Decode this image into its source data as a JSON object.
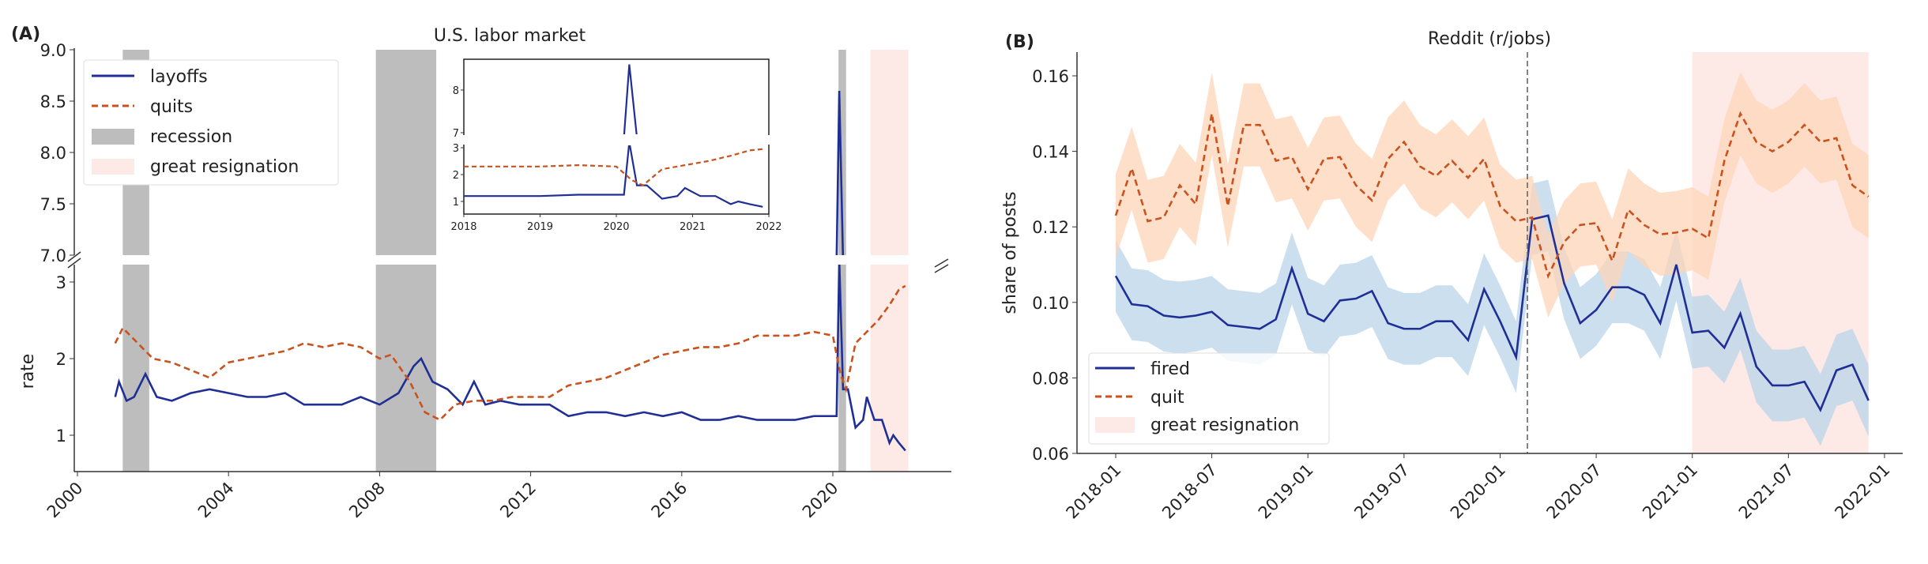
{
  "chart_data": [
    {
      "panel_label": "(A)",
      "type": "line",
      "title": "U.S. labor market",
      "ylabel": "rate",
      "xlabel": "",
      "xlim": [
        1999.9,
        2023.0
      ],
      "ylim_lower": [
        0.5,
        3.2
      ],
      "ylim_upper": [
        7.0,
        9.0
      ],
      "x_ticks": [
        "2000",
        "2004",
        "2008",
        "2012",
        "2016",
        "2020"
      ],
      "y_ticks_lower": [
        "1",
        "2",
        "3"
      ],
      "y_ticks_upper": [
        "7.0",
        "7.5",
        "8.0",
        "8.5",
        "9.0"
      ],
      "legend": {
        "position": "top-left",
        "entries": [
          "layoffs",
          "quits",
          "recession",
          "great resignation"
        ]
      },
      "colors": {
        "layoffs": "#1f2f96",
        "quits": "#c9521e",
        "recession": "#bdbdbd",
        "great_resignation": "#fde9e5"
      },
      "recessions": [
        [
          2001.2,
          2001.9
        ],
        [
          2007.9,
          2009.5
        ],
        [
          2020.15,
          2020.35
        ]
      ],
      "great_resignation": [
        2021.0,
        2022.0
      ],
      "series": [
        {
          "name": "layoffs",
          "style": "solid",
          "x": [
            2001.0,
            2001.1,
            2001.3,
            2001.5,
            2001.8,
            2002.1,
            2002.5,
            2003.0,
            2003.5,
            2004.0,
            2004.5,
            2005.0,
            2005.5,
            2006.0,
            2006.5,
            2007.0,
            2007.5,
            2008.0,
            2008.5,
            2008.9,
            2009.1,
            2009.4,
            2009.8,
            2010.2,
            2010.5,
            2010.8,
            2011.2,
            2011.7,
            2012.0,
            2012.5,
            2013.0,
            2013.5,
            2014.0,
            2014.5,
            2015.0,
            2015.5,
            2016.0,
            2016.5,
            2017.0,
            2017.5,
            2018.0,
            2018.5,
            2019.0,
            2019.5,
            2020.0,
            2020.1,
            2020.17,
            2020.27,
            2020.4,
            2020.6,
            2020.8,
            2020.9,
            2021.1,
            2021.3,
            2021.5,
            2021.6,
            2021.75,
            2021.92
          ],
          "y": [
            1.5,
            1.7,
            1.45,
            1.5,
            1.8,
            1.5,
            1.45,
            1.55,
            1.6,
            1.55,
            1.5,
            1.5,
            1.55,
            1.4,
            1.4,
            1.4,
            1.5,
            1.4,
            1.55,
            1.9,
            2.0,
            1.7,
            1.6,
            1.4,
            1.7,
            1.4,
            1.45,
            1.4,
            1.4,
            1.4,
            1.25,
            1.3,
            1.3,
            1.25,
            1.3,
            1.25,
            1.3,
            1.2,
            1.2,
            1.25,
            1.2,
            1.2,
            1.2,
            1.25,
            1.25,
            1.25,
            8.6,
            1.6,
            1.6,
            1.1,
            1.2,
            1.5,
            1.2,
            1.2,
            0.9,
            1.0,
            0.9,
            0.8
          ]
        },
        {
          "name": "quits",
          "style": "dashed",
          "x": [
            2001.0,
            2001.2,
            2001.6,
            2002.0,
            2002.5,
            2003.0,
            2003.5,
            2004.0,
            2004.5,
            2005.0,
            2005.5,
            2006.0,
            2006.5,
            2007.0,
            2007.5,
            2008.0,
            2008.3,
            2008.8,
            2009.2,
            2009.6,
            2010.0,
            2010.5,
            2011.0,
            2011.5,
            2012.0,
            2012.5,
            2013.0,
            2013.5,
            2014.0,
            2014.5,
            2015.0,
            2015.5,
            2016.0,
            2016.5,
            2017.0,
            2017.5,
            2018.0,
            2018.5,
            2019.0,
            2019.5,
            2020.0,
            2020.2,
            2020.35,
            2020.6,
            2020.9,
            2021.2,
            2021.5,
            2021.75,
            2021.92
          ],
          "y": [
            2.2,
            2.4,
            2.2,
            2.0,
            1.95,
            1.85,
            1.75,
            1.95,
            2.0,
            2.05,
            2.1,
            2.2,
            2.15,
            2.2,
            2.15,
            2.0,
            2.05,
            1.7,
            1.3,
            1.2,
            1.4,
            1.45,
            1.45,
            1.5,
            1.5,
            1.5,
            1.65,
            1.7,
            1.75,
            1.85,
            1.95,
            2.05,
            2.1,
            2.15,
            2.15,
            2.2,
            2.3,
            2.3,
            2.3,
            2.35,
            2.3,
            1.8,
            1.6,
            2.2,
            2.35,
            2.5,
            2.7,
            2.9,
            2.95
          ]
        }
      ],
      "inset": {
        "xlim": [
          2018.0,
          2022.0
        ],
        "x_ticks": [
          "2018",
          "2019",
          "2020",
          "2021",
          "2022"
        ],
        "y_ticks_lower": [
          "1",
          "2",
          "3"
        ],
        "y_ticks_upper": [
          "7",
          "8"
        ],
        "ylim_lower": [
          0.5,
          3.2
        ],
        "ylim_upper": [
          7.0,
          8.7
        ]
      }
    },
    {
      "panel_label": "(B)",
      "type": "line",
      "title": "Reddit (r/jobs)",
      "ylabel": "share of posts",
      "xlabel": "",
      "ylim": [
        0.06,
        0.166
      ],
      "y_ticks": [
        "0.06",
        "0.08",
        "0.10",
        "0.12",
        "0.14",
        "0.16"
      ],
      "x_ticks": [
        "2018-01",
        "2018-07",
        "2019-01",
        "2019-07",
        "2020-01",
        "2020-07",
        "2021-01",
        "2021-07",
        "2022-01"
      ],
      "x_start": "2018-01",
      "vline": "2020-03",
      "great_resignation": [
        "2021-01",
        "2021-12"
      ],
      "legend": {
        "position": "bottom-left",
        "entries": [
          "fired",
          "quit",
          "great resignation"
        ]
      },
      "colors": {
        "fired": "#1f2f96",
        "quit": "#c9521e",
        "fired_band": "#b9d4ea",
        "quit_band": "#fdd6b8",
        "great_resignation": "#fde9e5"
      },
      "series": [
        {
          "name": "fired",
          "style": "solid",
          "ci_halfwidth": 0.0095,
          "y": [
            0.107,
            0.0995,
            0.099,
            0.0965,
            0.096,
            0.0965,
            0.0975,
            0.094,
            0.0935,
            0.093,
            0.0955,
            0.109,
            0.097,
            0.095,
            0.1005,
            0.101,
            0.103,
            0.0945,
            0.093,
            0.093,
            0.095,
            0.095,
            0.09,
            0.1035,
            0.095,
            0.0855,
            0.122,
            0.123,
            0.105,
            0.0945,
            0.098,
            0.104,
            0.104,
            0.102,
            0.0945,
            0.11,
            0.092,
            0.0925,
            0.088,
            0.097,
            0.083,
            0.078,
            0.078,
            0.079,
            0.0715,
            0.082,
            0.0835,
            0.074
          ]
        },
        {
          "name": "quit",
          "style": "dashed",
          "ci_halfwidth": 0.011,
          "y": [
            0.123,
            0.1355,
            0.1215,
            0.1225,
            0.131,
            0.126,
            0.15,
            0.1255,
            0.147,
            0.147,
            0.1375,
            0.1385,
            0.13,
            0.138,
            0.1385,
            0.131,
            0.127,
            0.138,
            0.1425,
            0.136,
            0.1335,
            0.1375,
            0.133,
            0.138,
            0.1255,
            0.1215,
            0.1225,
            0.107,
            0.116,
            0.1205,
            0.121,
            0.111,
            0.1245,
            0.1205,
            0.118,
            0.1185,
            0.1195,
            0.117,
            0.1375,
            0.15,
            0.1425,
            0.14,
            0.1425,
            0.147,
            0.1425,
            0.1435,
            0.131,
            0.128
          ]
        }
      ]
    }
  ]
}
